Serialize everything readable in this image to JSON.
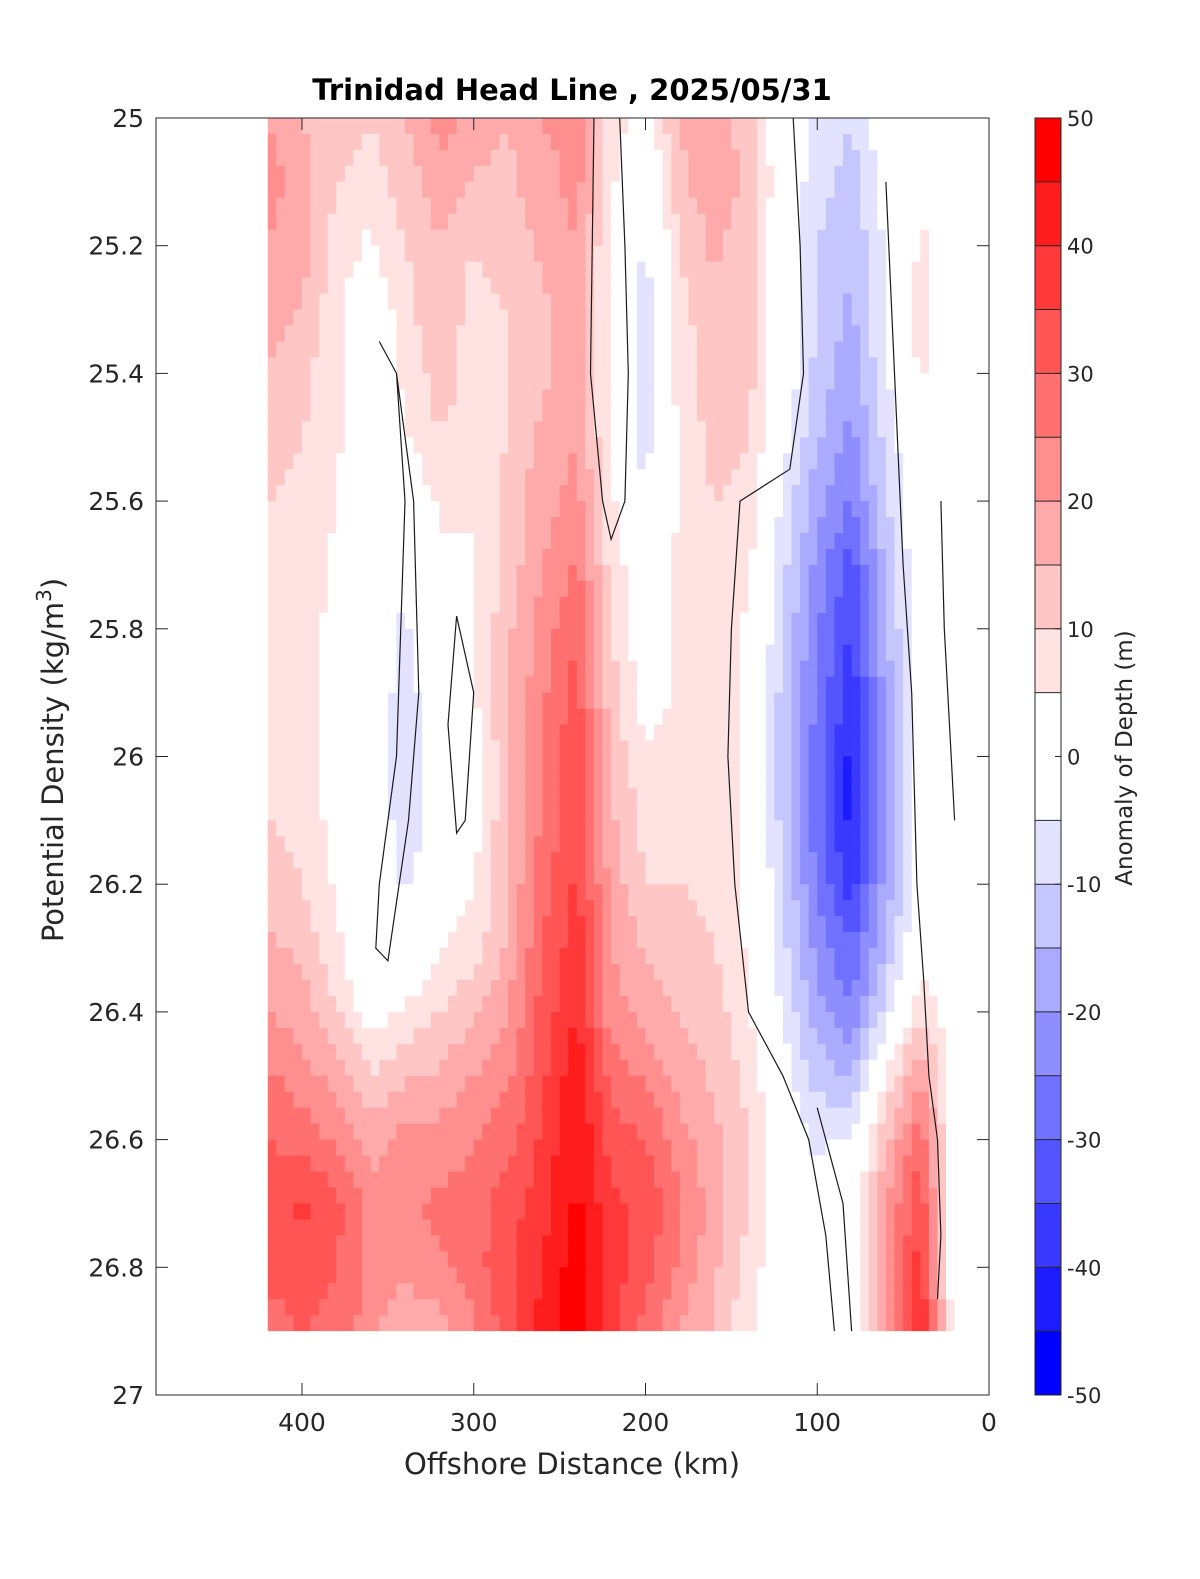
{
  "chart_data": {
    "type": "heatmap",
    "title": "Trinidad Head Line , 2025/05/31",
    "xlabel": "Offshore Distance (km)",
    "ylabel": "Potential Density (kg/m",
    "ylabel_superscript": "3",
    "ylabel_suffix": ")",
    "colorbar_label": "Anomaly of Depth (m)",
    "xlim": [
      485,
      0
    ],
    "ylim": [
      25,
      27
    ],
    "x_reversed": true,
    "y_reversed": true,
    "x_ticks": [
      400,
      300,
      200,
      100,
      0
    ],
    "y_ticks": [
      25,
      25.2,
      25.4,
      25.6,
      25.8,
      26,
      26.2,
      26.4,
      26.6,
      26.8,
      27
    ],
    "y_tick_labels": [
      "25",
      "25.2",
      "25.4",
      "25.6",
      "25.8",
      "26",
      "26.2",
      "26.4",
      "26.6",
      "26.8",
      "27"
    ],
    "colorbar_ticks": [
      50,
      40,
      30,
      20,
      10,
      0,
      -10,
      -20,
      -30,
      -40,
      -50
    ],
    "color_levels": [
      -50,
      -45,
      -40,
      -35,
      -30,
      -25,
      -20,
      -15,
      -10,
      -5,
      5,
      10,
      15,
      20,
      25,
      30,
      35,
      40,
      45,
      50
    ],
    "colormap": {
      "negative": "#0000ff",
      "zero": "#ffffff",
      "positive": "#ff0000"
    },
    "zero_contour": true,
    "data_extent": {
      "x": [
        420,
        20
      ],
      "y": [
        25,
        26.9
      ]
    },
    "x_stations": [
      420,
      400,
      380,
      360,
      340,
      320,
      300,
      280,
      260,
      240,
      220,
      200,
      180,
      160,
      140,
      120,
      100,
      80,
      60,
      40,
      20
    ],
    "y_levels": [
      25.0,
      25.1,
      25.2,
      25.3,
      25.4,
      25.5,
      25.6,
      25.7,
      25.8,
      25.9,
      26.0,
      26.1,
      26.2,
      26.3,
      26.4,
      26.5,
      26.6,
      26.7,
      26.8,
      26.9
    ],
    "anomaly_grid": [
      [
        20,
        15,
        12,
        10,
        15,
        22,
        18,
        15,
        20,
        22,
        8,
        4,
        15,
        18,
        12,
        0,
        -6,
        -10,
        0,
        0,
        0
      ],
      [
        22,
        18,
        10,
        8,
        12,
        18,
        14,
        14,
        18,
        22,
        6,
        -4,
        14,
        18,
        14,
        0,
        -8,
        -12,
        -2,
        4,
        0
      ],
      [
        20,
        17,
        8,
        4,
        10,
        15,
        10,
        12,
        16,
        20,
        4,
        -6,
        10,
        16,
        12,
        0,
        -10,
        -14,
        -4,
        6,
        0
      ],
      [
        18,
        15,
        6,
        0,
        8,
        14,
        8,
        10,
        14,
        18,
        4,
        -8,
        8,
        14,
        12,
        0,
        -10,
        -16,
        -4,
        8,
        0
      ],
      [
        14,
        12,
        6,
        0,
        6,
        12,
        8,
        10,
        14,
        18,
        4,
        -10,
        8,
        12,
        12,
        0,
        -12,
        -18,
        -6,
        6,
        0
      ],
      [
        12,
        10,
        6,
        0,
        4,
        10,
        8,
        10,
        16,
        20,
        4,
        -8,
        6,
        12,
        10,
        -2,
        -14,
        -22,
        -8,
        2,
        0
      ],
      [
        10,
        8,
        5,
        -2,
        0,
        6,
        6,
        12,
        18,
        22,
        6,
        -4,
        6,
        10,
        8,
        -6,
        -18,
        -26,
        -10,
        0,
        0
      ],
      [
        10,
        8,
        4,
        0,
        -4,
        4,
        4,
        12,
        20,
        26,
        8,
        0,
        6,
        10,
        6,
        -8,
        -22,
        -32,
        -14,
        0,
        -2
      ],
      [
        10,
        8,
        3,
        0,
        -6,
        0,
        4,
        14,
        22,
        30,
        10,
        0,
        6,
        8,
        4,
        -10,
        -24,
        -36,
        -16,
        0,
        0
      ],
      [
        10,
        8,
        3,
        0,
        -8,
        0,
        4,
        14,
        24,
        32,
        12,
        2,
        6,
        8,
        4,
        -12,
        -26,
        -38,
        -18,
        0,
        0
      ],
      [
        10,
        8,
        3,
        0,
        -8,
        -2,
        3,
        14,
        26,
        34,
        14,
        6,
        6,
        8,
        4,
        -12,
        -28,
        -42,
        -20,
        0,
        0
      ],
      [
        10,
        8,
        3,
        0,
        -8,
        -2,
        3,
        14,
        26,
        34,
        16,
        8,
        8,
        8,
        4,
        -12,
        -28,
        -42,
        -20,
        -2,
        0
      ],
      [
        12,
        10,
        4,
        0,
        -6,
        0,
        4,
        15,
        28,
        36,
        18,
        10,
        10,
        8,
        4,
        -10,
        -26,
        -38,
        -18,
        0,
        0
      ],
      [
        16,
        14,
        6,
        0,
        -2,
        4,
        8,
        16,
        30,
        38,
        20,
        14,
        12,
        10,
        4,
        -8,
        -22,
        -30,
        -14,
        2,
        0
      ],
      [
        20,
        18,
        10,
        2,
        6,
        10,
        14,
        20,
        32,
        40,
        22,
        18,
        14,
        12,
        6,
        -6,
        -18,
        -24,
        -8,
        10,
        0
      ],
      [
        26,
        22,
        18,
        10,
        14,
        16,
        20,
        24,
        34,
        44,
        28,
        24,
        18,
        14,
        8,
        -2,
        -12,
        -16,
        6,
        20,
        0
      ],
      [
        30,
        28,
        24,
        18,
        22,
        22,
        24,
        28,
        36,
        46,
        32,
        30,
        22,
        16,
        10,
        0,
        -6,
        -4,
        14,
        28,
        0
      ],
      [
        34,
        36,
        32,
        22,
        24,
        26,
        28,
        32,
        38,
        46,
        36,
        34,
        26,
        18,
        10,
        0,
        -4,
        0,
        20,
        34,
        0
      ],
      [
        32,
        32,
        30,
        24,
        22,
        24,
        28,
        34,
        40,
        48,
        38,
        32,
        24,
        16,
        8,
        0,
        -2,
        0,
        22,
        38,
        0
      ],
      [
        28,
        30,
        28,
        22,
        14,
        18,
        24,
        32,
        42,
        50,
        36,
        28,
        20,
        14,
        6,
        0,
        -4,
        0,
        18,
        42,
        0
      ]
    ],
    "zero_contours": [
      [
        [
          355,
          25.35
        ],
        [
          345,
          25.4
        ],
        [
          340,
          25.6
        ],
        [
          345,
          26.0
        ],
        [
          355,
          26.2
        ],
        [
          357,
          26.3
        ],
        [
          350,
          26.32
        ],
        [
          338,
          26.1
        ],
        [
          332,
          25.9
        ],
        [
          335,
          25.6
        ],
        [
          345,
          25.4
        ],
        [
          355,
          25.35
        ]
      ],
      [
        [
          310,
          25.78
        ],
        [
          300,
          25.9
        ],
        [
          305,
          26.1
        ],
        [
          310,
          26.12
        ],
        [
          315,
          25.95
        ],
        [
          310,
          25.78
        ]
      ],
      [
        [
          230,
          25.0
        ],
        [
          232,
          25.4
        ],
        [
          225,
          25.6
        ],
        [
          220,
          25.66
        ],
        [
          212,
          25.6
        ],
        [
          210,
          25.4
        ],
        [
          212,
          25.2
        ],
        [
          215,
          25.0
        ]
      ],
      [
        [
          114,
          25.0
        ],
        [
          110,
          25.2
        ],
        [
          108,
          25.4
        ],
        [
          116,
          25.55
        ],
        [
          145,
          25.6
        ],
        [
          150,
          25.8
        ],
        [
          152,
          26.0
        ],
        [
          148,
          26.2
        ],
        [
          140,
          26.4
        ],
        [
          120,
          26.5
        ],
        [
          105,
          26.6
        ],
        [
          95,
          26.75
        ],
        [
          90,
          26.9
        ]
      ],
      [
        [
          80,
          26.9
        ],
        [
          85,
          26.7
        ],
        [
          95,
          26.6
        ],
        [
          100,
          26.55
        ]
      ],
      [
        [
          60,
          25.1
        ],
        [
          55,
          25.4
        ],
        [
          50,
          25.7
        ],
        [
          45,
          25.9
        ],
        [
          42,
          26.2
        ],
        [
          38,
          26.35
        ],
        [
          35,
          26.5
        ],
        [
          30,
          26.6
        ],
        [
          28,
          26.75
        ],
        [
          30,
          26.85
        ]
      ],
      [
        [
          28,
          25.6
        ],
        [
          26,
          25.8
        ],
        [
          22,
          26.0
        ],
        [
          20,
          26.1
        ]
      ]
    ]
  }
}
